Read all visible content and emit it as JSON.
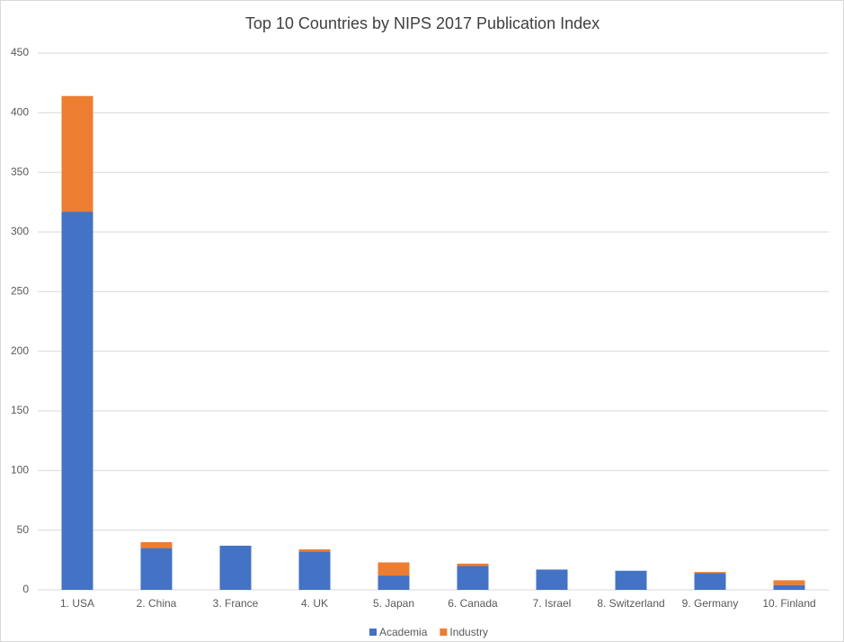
{
  "chart_data": {
    "type": "stacked_bar",
    "title": "Top 10 Countries by NIPS 2017 Publication Index",
    "categories": [
      "1. USA",
      "2. China",
      "3. France",
      "4. UK",
      "5. Japan",
      "6. Canada",
      "7. Israel",
      "8. Switzerland",
      "9. Germany",
      "10. Finland"
    ],
    "series": [
      {
        "name": "Academia",
        "color": "#4472c4",
        "values": [
          317,
          35,
          37,
          32,
          12,
          20,
          17,
          16,
          14,
          4
        ]
      },
      {
        "name": "Industry",
        "color": "#ed7d31",
        "values": [
          97,
          5,
          0,
          2,
          11,
          2,
          0,
          0,
          1,
          4
        ]
      }
    ],
    "ylim": [
      0,
      450
    ],
    "yticks": [
      0,
      50,
      100,
      150,
      200,
      250,
      300,
      350,
      400,
      450
    ],
    "grid": true,
    "legend": "bottom"
  }
}
